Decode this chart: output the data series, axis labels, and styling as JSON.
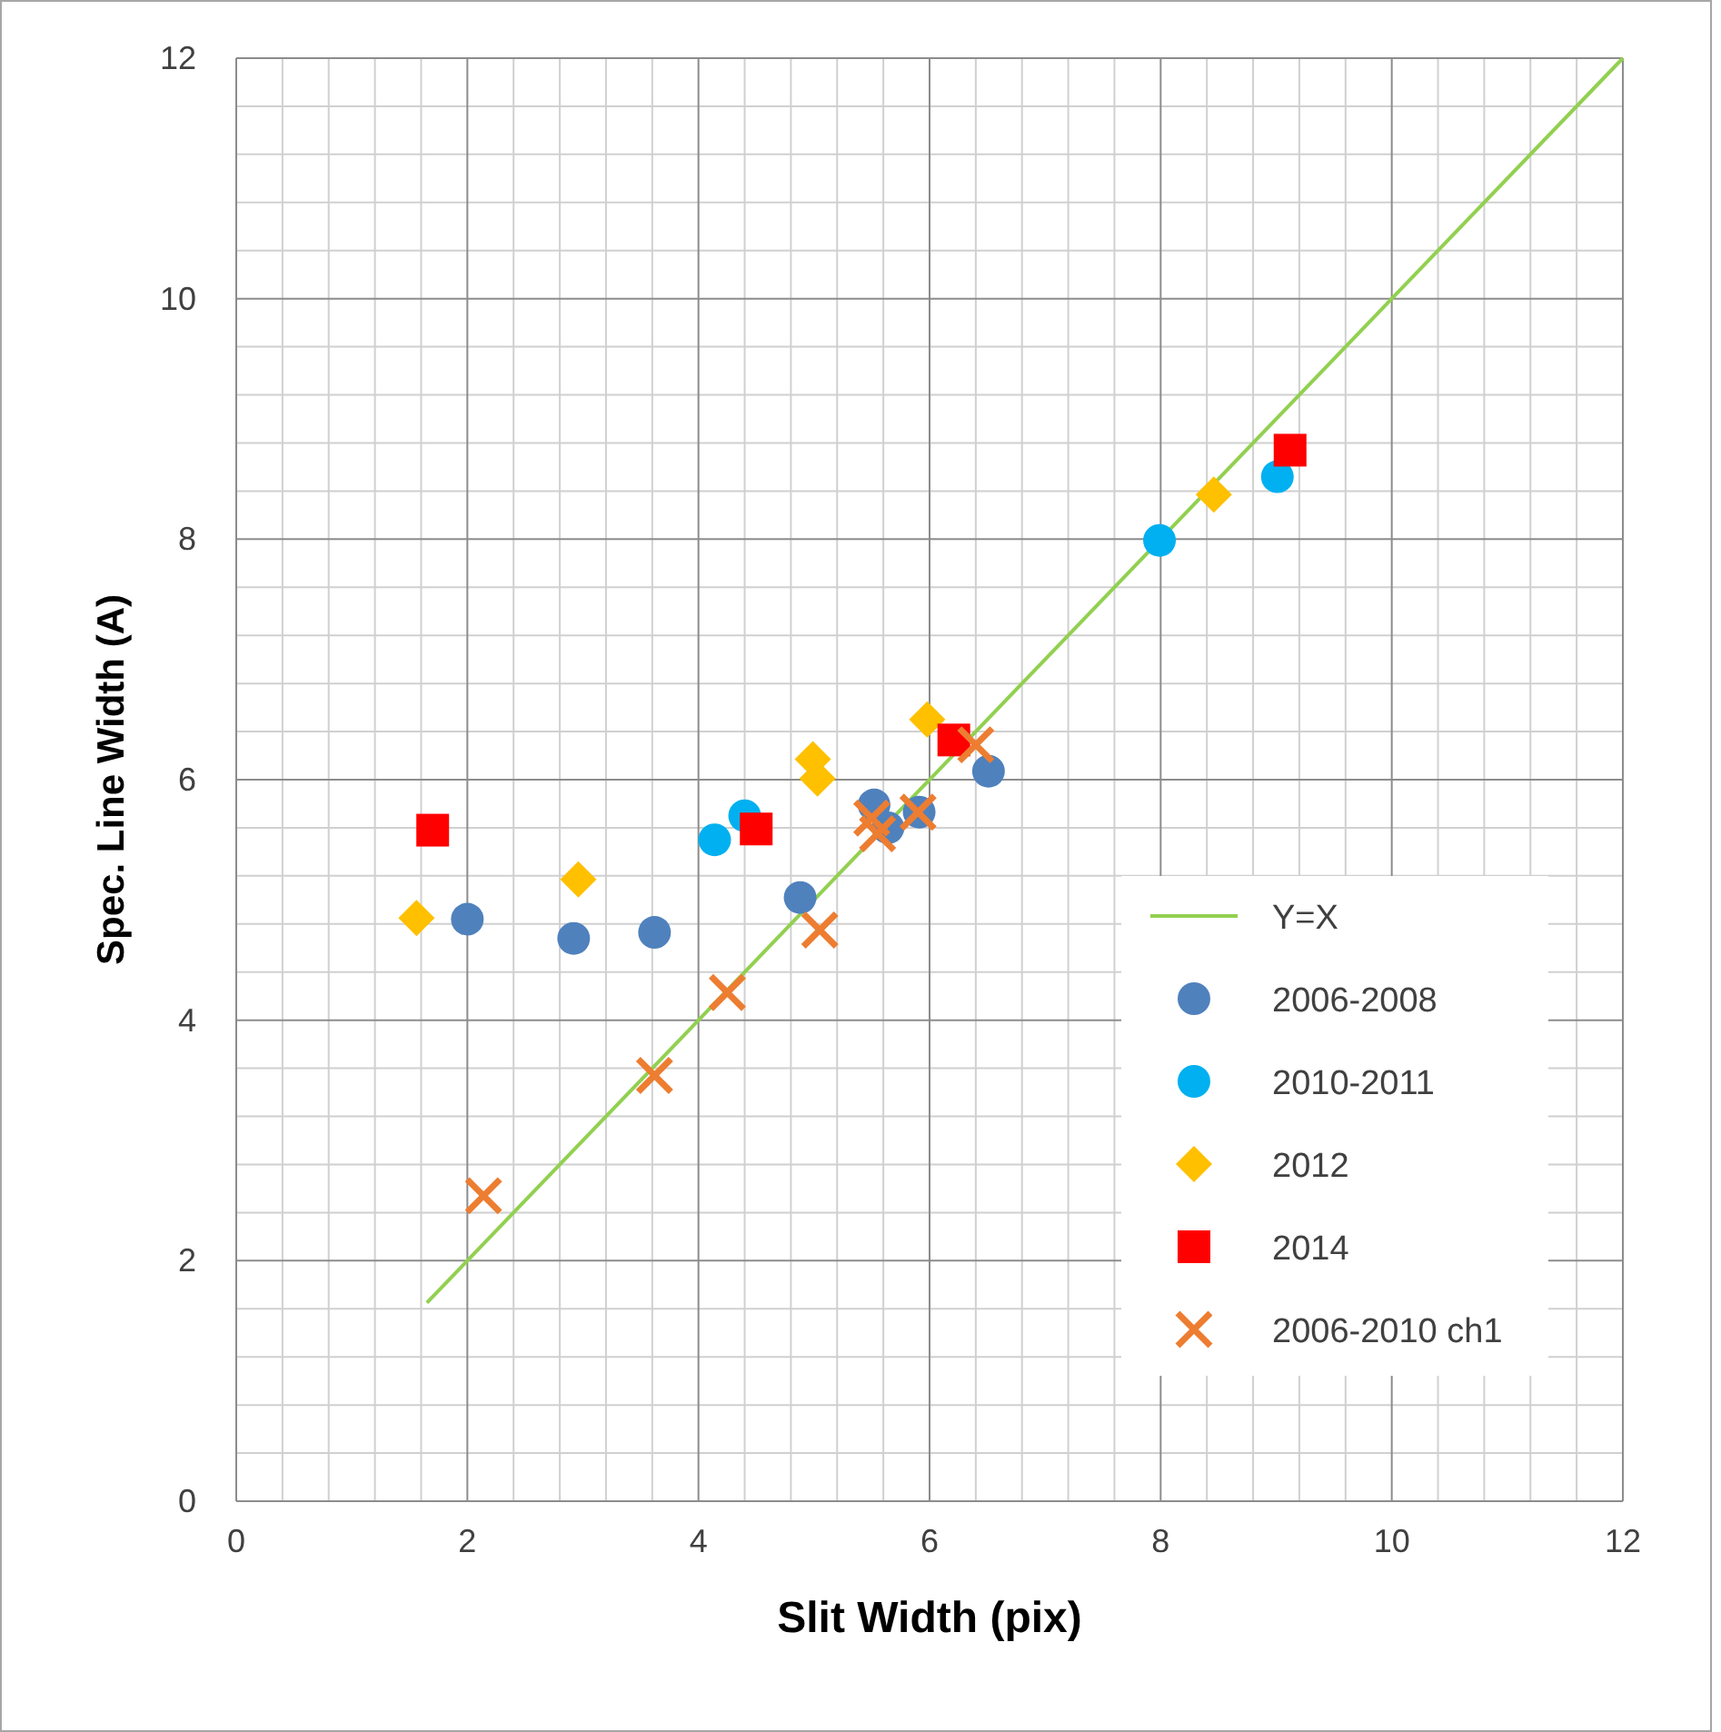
{
  "chart_data": {
    "type": "scatter",
    "xlabel": "Slit Width (pix)",
    "ylabel": "Spec. Line Width (A)",
    "xlim": [
      0,
      12
    ],
    "ylim": [
      0,
      12
    ],
    "xticks": [
      0,
      2,
      4,
      6,
      8,
      10,
      12
    ],
    "yticks": [
      0,
      2,
      4,
      6,
      8,
      10,
      12
    ],
    "grid": true,
    "legend": "right",
    "series": [
      {
        "name": "Y=X",
        "type": "line",
        "marker": "none",
        "color": "#92d050",
        "x": [
          1.65,
          12
        ],
        "values": [
          1.65,
          12
        ]
      },
      {
        "name": "2006-2008",
        "marker": "circle",
        "color": "#4f81bd",
        "x": [
          2.0,
          2.92,
          3.62,
          4.88,
          5.52,
          5.64,
          5.91,
          6.51
        ],
        "values": [
          4.84,
          4.68,
          4.73,
          5.02,
          5.79,
          5.6,
          5.73,
          6.07
        ]
      },
      {
        "name": "2010-2011",
        "marker": "circle",
        "color": "#00b0f0",
        "x": [
          4.14,
          4.4,
          7.99,
          9.01
        ],
        "values": [
          5.5,
          5.7,
          7.99,
          8.52
        ]
      },
      {
        "name": "2012",
        "marker": "diamond",
        "color": "#ffc000",
        "x": [
          1.56,
          2.96,
          4.99,
          5.03,
          5.98,
          8.46
        ],
        "values": [
          4.85,
          5.17,
          6.17,
          6.01,
          6.5,
          8.37
        ]
      },
      {
        "name": "2014",
        "marker": "square",
        "color": "#ff0000",
        "x": [
          1.7,
          4.5,
          6.21,
          9.12
        ],
        "values": [
          5.58,
          5.59,
          6.33,
          8.74
        ]
      },
      {
        "name": "2006-2010 ch1",
        "marker": "cross",
        "color": "#ed7d31",
        "x": [
          2.14,
          3.62,
          4.25,
          5.05,
          5.5,
          5.55,
          5.9,
          6.4
        ],
        "values": [
          2.54,
          3.54,
          4.23,
          4.75,
          5.68,
          5.55,
          5.73,
          6.29
        ]
      }
    ]
  }
}
